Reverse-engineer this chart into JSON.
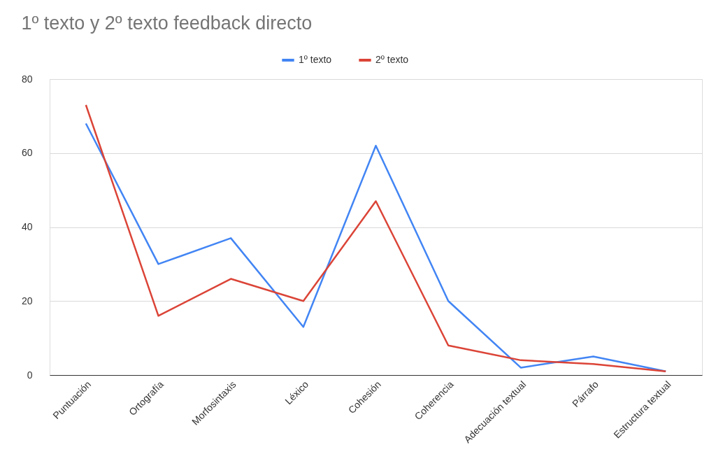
{
  "chart_data": {
    "type": "line",
    "title": "1º texto y 2º texto feedback directo",
    "categories": [
      "Puntuación",
      "Ortografía",
      "Morfosintaxis",
      "Léxico",
      "Cohesión",
      "Coherencia",
      "Adecuación textual",
      "Párrafo",
      "Estructura textual"
    ],
    "series": [
      {
        "name": "1º texto",
        "color": "#4285f4",
        "values": [
          68,
          30,
          37,
          13,
          62,
          20,
          2,
          5,
          1
        ]
      },
      {
        "name": "2º texto",
        "color": "#db4437",
        "values": [
          73,
          16,
          26,
          20,
          47,
          8,
          4,
          3,
          1
        ]
      }
    ],
    "ylim": [
      0,
      80
    ],
    "yticks": [
      0,
      20,
      40,
      60,
      80
    ],
    "grid": "y",
    "legend": "top",
    "marker": "none",
    "line_style": "solid"
  }
}
